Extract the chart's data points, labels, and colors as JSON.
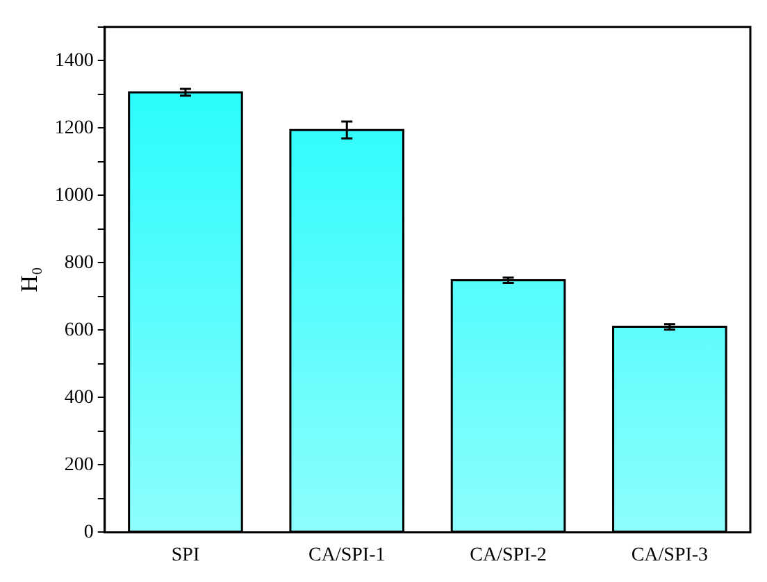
{
  "chart_data": {
    "type": "bar",
    "ylabel": "H₀",
    "categories": [
      "SPI",
      "CA/SPI-1",
      "CA/SPI-2",
      "CA/SPI-3"
    ],
    "values": [
      1306,
      1194,
      748,
      610
    ],
    "errors": [
      10,
      25,
      8,
      8
    ],
    "color": "#1cfcfc",
    "ylim": [
      0,
      1500
    ],
    "yticks": [
      0,
      {
        "value": 100,
        "label": null
      },
      200,
      {
        "value": 300,
        "label": null
      },
      400,
      {
        "value": 500,
        "label": null
      },
      600,
      {
        "value": 700,
        "label": null
      },
      800,
      {
        "value": 900,
        "label": null
      },
      1000,
      {
        "value": 1100,
        "label": null
      },
      1200,
      {
        "value": 1300,
        "label": null
      },
      1400,
      {
        "value": 1500,
        "label": null
      }
    ],
    "grid": false,
    "legend": false
  }
}
